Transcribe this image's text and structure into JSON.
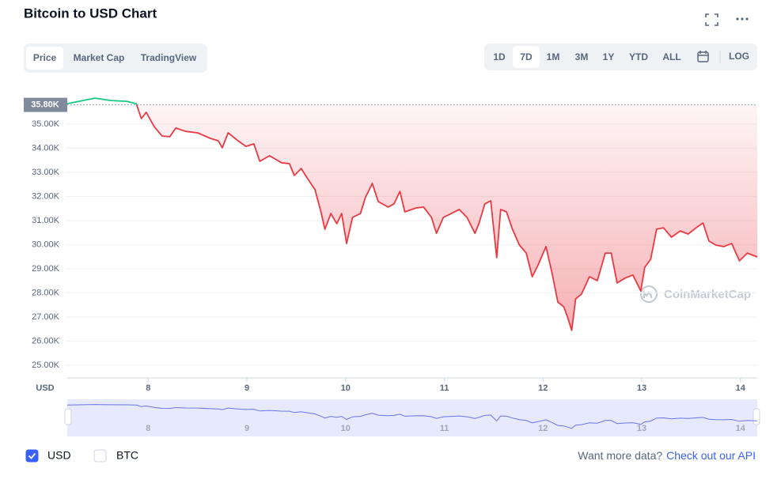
{
  "header": {
    "title": "Bitcoin to USD Chart"
  },
  "tabs": [
    "Price",
    "Market Cap",
    "TradingView"
  ],
  "active_tab": 0,
  "ranges": [
    "1D",
    "7D",
    "1M",
    "3M",
    "1Y",
    "YTD",
    "ALL"
  ],
  "active_range": 1,
  "log_button": "LOG",
  "chart_data": {
    "type": "line",
    "y_label": "USD",
    "watermark": "CoinMarketCap",
    "x": [
      7.18,
      7.3,
      7.46,
      7.62,
      7.78,
      7.88,
      7.93,
      7.98,
      8.06,
      8.14,
      8.22,
      8.28,
      8.38,
      8.5,
      8.63,
      8.71,
      8.75,
      8.81,
      8.91,
      8.99,
      9.07,
      9.13,
      9.23,
      9.35,
      9.43,
      9.48,
      9.55,
      9.61,
      9.69,
      9.75,
      9.79,
      9.85,
      9.91,
      9.96,
      10.01,
      10.07,
      10.15,
      10.2,
      10.27,
      10.33,
      10.43,
      10.49,
      10.55,
      10.6,
      10.71,
      10.79,
      10.87,
      10.92,
      10.99,
      11.07,
      11.15,
      11.23,
      11.31,
      11.35,
      11.41,
      11.47,
      11.53,
      11.57,
      11.63,
      11.69,
      11.76,
      11.83,
      11.89,
      11.95,
      12.03,
      12.09,
      12.15,
      12.21,
      12.25,
      12.29,
      12.33,
      12.39,
      12.47,
      12.55,
      12.63,
      12.69,
      12.75,
      12.83,
      12.91,
      12.99,
      13.03,
      13.09,
      13.15,
      13.22,
      13.3,
      13.39,
      13.47,
      13.55,
      13.62,
      13.68,
      13.75,
      13.83,
      13.91,
      13.99,
      14.07,
      14.17
    ],
    "values": [
      35850,
      35950,
      36080,
      35980,
      35950,
      35850,
      35230,
      35490,
      34900,
      34510,
      34480,
      34840,
      34700,
      34640,
      34410,
      34310,
      34020,
      34640,
      34310,
      34080,
      34180,
      33460,
      33690,
      33400,
      33360,
      32870,
      33160,
      32770,
      32280,
      31360,
      30640,
      31290,
      30870,
      31290,
      30050,
      31130,
      31290,
      31950,
      32540,
      31790,
      31560,
      31690,
      32210,
      31360,
      31520,
      31560,
      31130,
      30470,
      31130,
      31290,
      31460,
      31130,
      30470,
      30870,
      31690,
      31820,
      29460,
      31460,
      31360,
      30640,
      29980,
      29650,
      28670,
      29160,
      29920,
      28840,
      27620,
      27420,
      26970,
      26440,
      27750,
      27950,
      28670,
      28510,
      29650,
      29650,
      28410,
      28610,
      28740,
      28080,
      29060,
      29390,
      30640,
      30700,
      30310,
      30570,
      30440,
      30700,
      30900,
      30150,
      29980,
      29920,
      30050,
      29330,
      29650,
      29490
    ],
    "color": "#ea3943",
    "above_color": "#16c784",
    "navigator_color": "#6b74e8",
    "reference": {
      "value": 35800,
      "label": "35.80K"
    },
    "xlim": [
      7.18,
      14.17
    ],
    "xticks": [
      8,
      9,
      10,
      11,
      12,
      13,
      14
    ],
    "ylim": [
      24470,
      36280
    ],
    "yticks": [
      {
        "value": 25000,
        "label": "25.00K"
      },
      {
        "value": 26000,
        "label": "26.00K"
      },
      {
        "value": 27000,
        "label": "27.00K"
      },
      {
        "value": 28000,
        "label": "28.00K"
      },
      {
        "value": 29000,
        "label": "29.00K"
      },
      {
        "value": 30000,
        "label": "30.00K"
      },
      {
        "value": 31000,
        "label": "31.00K"
      },
      {
        "value": 32000,
        "label": "32.00K"
      },
      {
        "value": 33000,
        "label": "33.00K"
      },
      {
        "value": 34000,
        "label": "34.00K"
      },
      {
        "value": 35000,
        "label": "35.00K"
      }
    ],
    "grid": true
  },
  "currencies": [
    {
      "label": "USD",
      "checked": true
    },
    {
      "label": "BTC",
      "checked": false
    }
  ],
  "footer": {
    "text": "Want more data?",
    "link": "Check out our API"
  }
}
